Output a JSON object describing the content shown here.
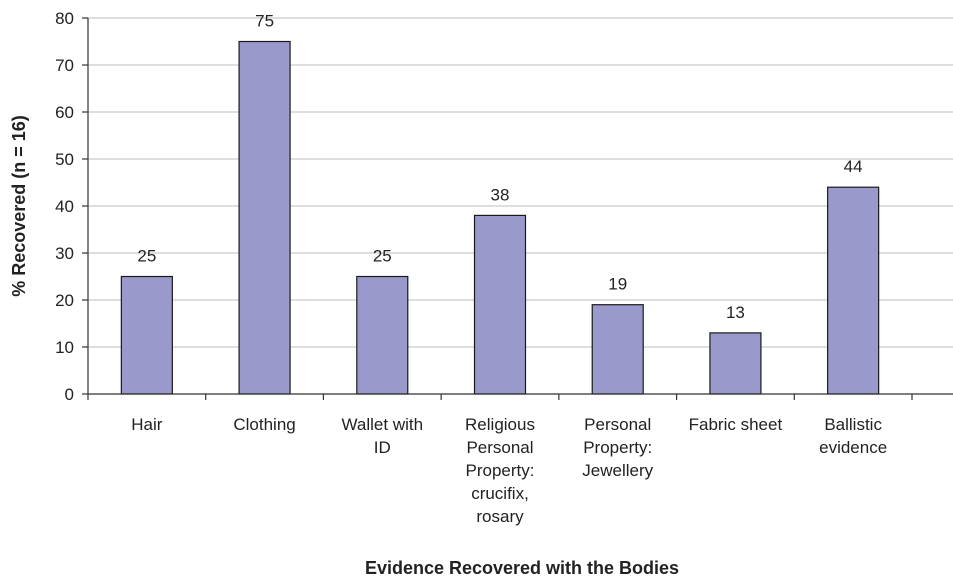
{
  "chart_data": {
    "type": "bar",
    "title": "",
    "xlabel": "Evidence Recovered with the Bodies",
    "ylabel": "% Recovered (n = 16)",
    "ylim": [
      0,
      80
    ],
    "yticks": [
      0,
      10,
      20,
      30,
      40,
      50,
      60,
      70,
      80
    ],
    "grid": true,
    "categories": [
      [
        "Hair"
      ],
      [
        "Clothing"
      ],
      [
        "Wallet with",
        "ID"
      ],
      [
        "Religious",
        "Personal",
        "Property:",
        "crucifix,",
        "rosary"
      ],
      [
        "Personal",
        "Property:",
        "Jewellery"
      ],
      [
        "Fabric sheet"
      ],
      [
        "Ballistic",
        "evidence"
      ]
    ],
    "values": [
      25,
      75,
      25,
      38,
      19,
      13,
      44
    ],
    "colors": {
      "bar": "#9999cc",
      "bar_stroke": "#1a1a1a",
      "grid": "#bdbdbd"
    }
  }
}
